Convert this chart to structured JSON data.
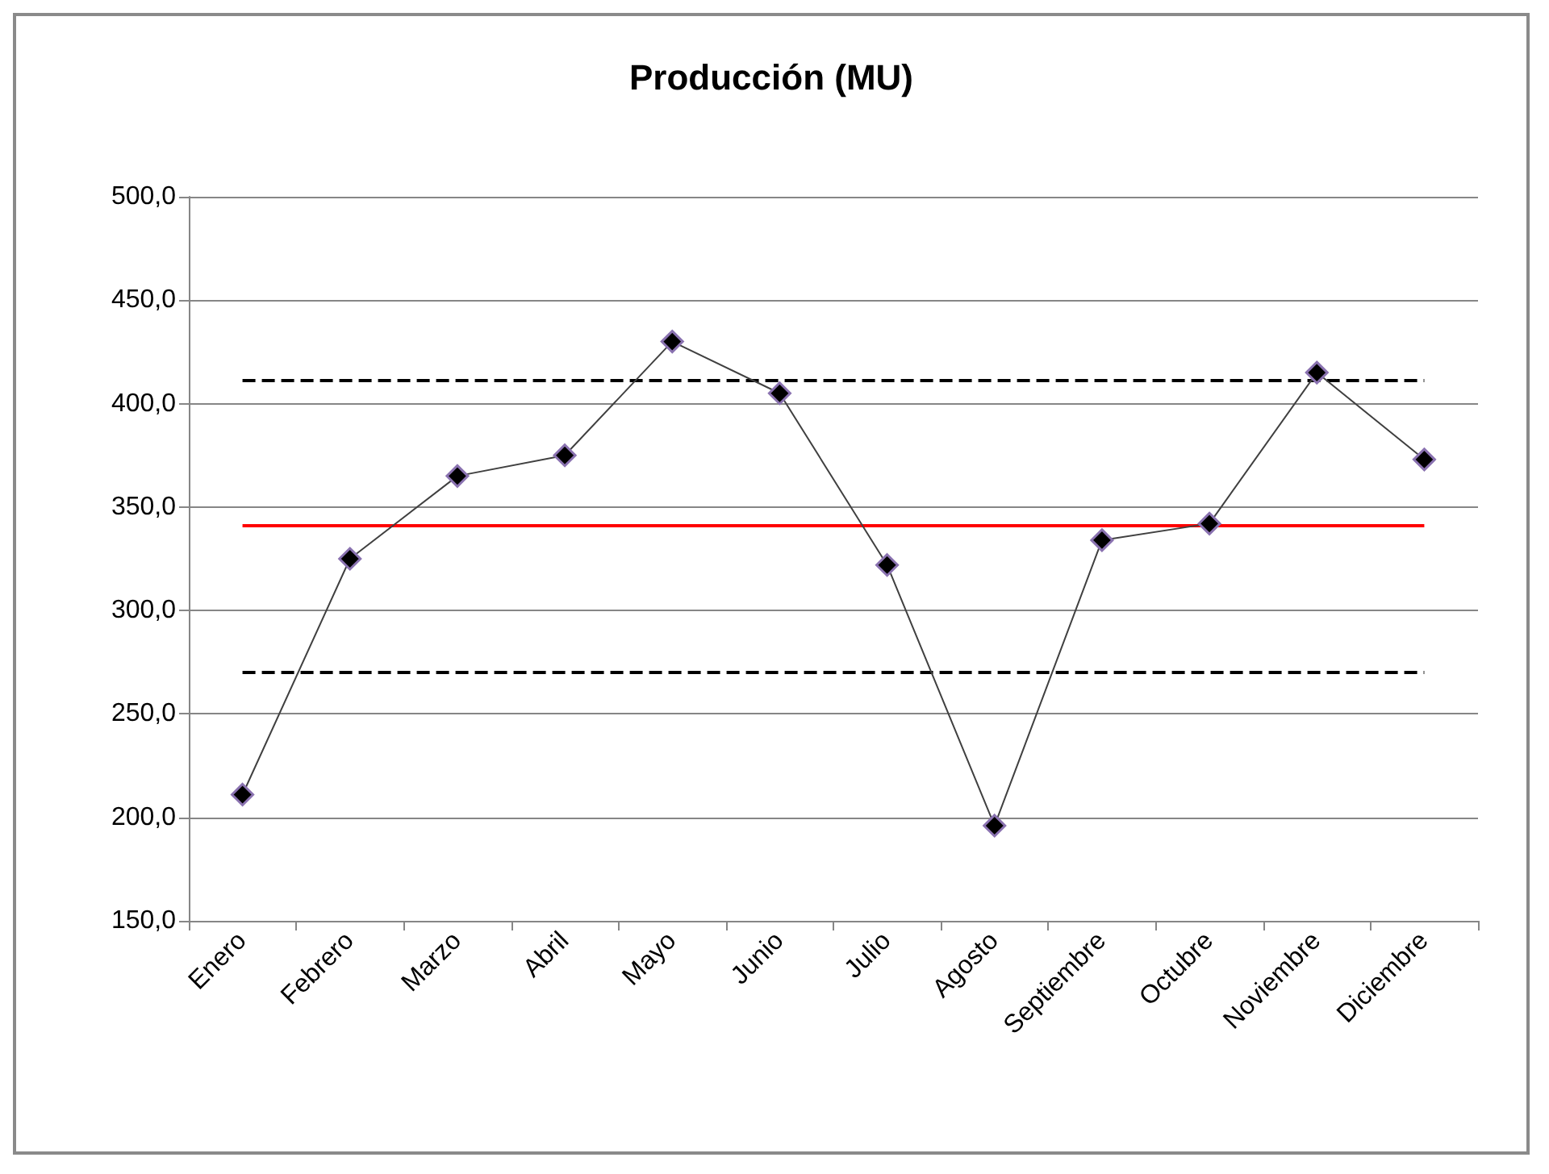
{
  "chart_data": {
    "type": "line",
    "title": "Producción (MU)",
    "categories": [
      "Enero",
      "Febrero",
      "Marzo",
      "Abril",
      "Mayo",
      "Junio",
      "Julio",
      "Agosto",
      "Septiembre",
      "Octubre",
      "Noviembre",
      "Diciembre"
    ],
    "series": [
      {
        "color": "#000000",
        "values": [
          211,
          325,
          365,
          375,
          430,
          405,
          322,
          196,
          334,
          342,
          415,
          373
        ]
      }
    ],
    "ylim": [
      150,
      500
    ],
    "yticks": [
      {
        "value": 150,
        "label": "150,0"
      },
      {
        "value": 200,
        "label": "200,0"
      },
      {
        "value": 250,
        "label": "250,0"
      },
      {
        "value": 300,
        "label": "300,0"
      },
      {
        "value": 350,
        "label": "350,0"
      },
      {
        "value": 400,
        "label": "400,0"
      },
      {
        "value": 450,
        "label": "450,0"
      },
      {
        "value": 500,
        "label": "500,0"
      }
    ],
    "ref_lines": [
      {
        "axis": "y",
        "value": 411,
        "color": "#000000",
        "line_style": "dashed"
      },
      {
        "axis": "y",
        "value": 341,
        "color": "#ff0000",
        "line_style": "solid"
      },
      {
        "axis": "y",
        "value": 270,
        "color": "#000000",
        "line_style": "dashed"
      }
    ],
    "grid": "y",
    "marker": "diamond",
    "line_style": "solid"
  }
}
